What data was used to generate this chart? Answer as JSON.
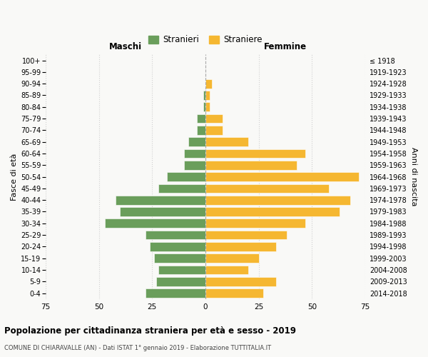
{
  "age_groups": [
    "100+",
    "95-99",
    "90-94",
    "85-89",
    "80-84",
    "75-79",
    "70-74",
    "65-69",
    "60-64",
    "55-59",
    "50-54",
    "45-49",
    "40-44",
    "35-39",
    "30-34",
    "25-29",
    "20-24",
    "15-19",
    "10-14",
    "5-9",
    "0-4"
  ],
  "birth_years": [
    "≤ 1918",
    "1919-1923",
    "1924-1928",
    "1929-1933",
    "1934-1938",
    "1939-1943",
    "1944-1948",
    "1949-1953",
    "1954-1958",
    "1959-1963",
    "1964-1968",
    "1969-1973",
    "1974-1978",
    "1979-1983",
    "1984-1988",
    "1989-1993",
    "1994-1998",
    "1999-2003",
    "2004-2008",
    "2009-2013",
    "2014-2018"
  ],
  "maschi": [
    0,
    0,
    0,
    1,
    1,
    4,
    4,
    8,
    10,
    10,
    18,
    22,
    42,
    40,
    47,
    28,
    26,
    24,
    22,
    23,
    28
  ],
  "femmine": [
    0,
    0,
    3,
    2,
    2,
    8,
    8,
    20,
    47,
    43,
    72,
    58,
    68,
    63,
    47,
    38,
    33,
    25,
    20,
    33,
    27
  ],
  "male_color": "#6a9e5b",
  "female_color": "#f5b731",
  "grid_color": "#d0d0d0",
  "dashed_line_color": "#aaaaaa",
  "xlim": 75,
  "title": "Popolazione per cittadinanza straniera per età e sesso - 2019",
  "subtitle": "COMUNE DI CHIARAVALLE (AN) - Dati ISTAT 1° gennaio 2019 - Elaborazione TUTTITALIA.IT",
  "ylabel_left": "Fasce di età",
  "ylabel_right": "Anni di nascita",
  "legend_male": "Stranieri",
  "legend_female": "Straniere",
  "maschi_label": "Maschi",
  "femmine_label": "Femmine",
  "bg_color": "#f9f9f7"
}
